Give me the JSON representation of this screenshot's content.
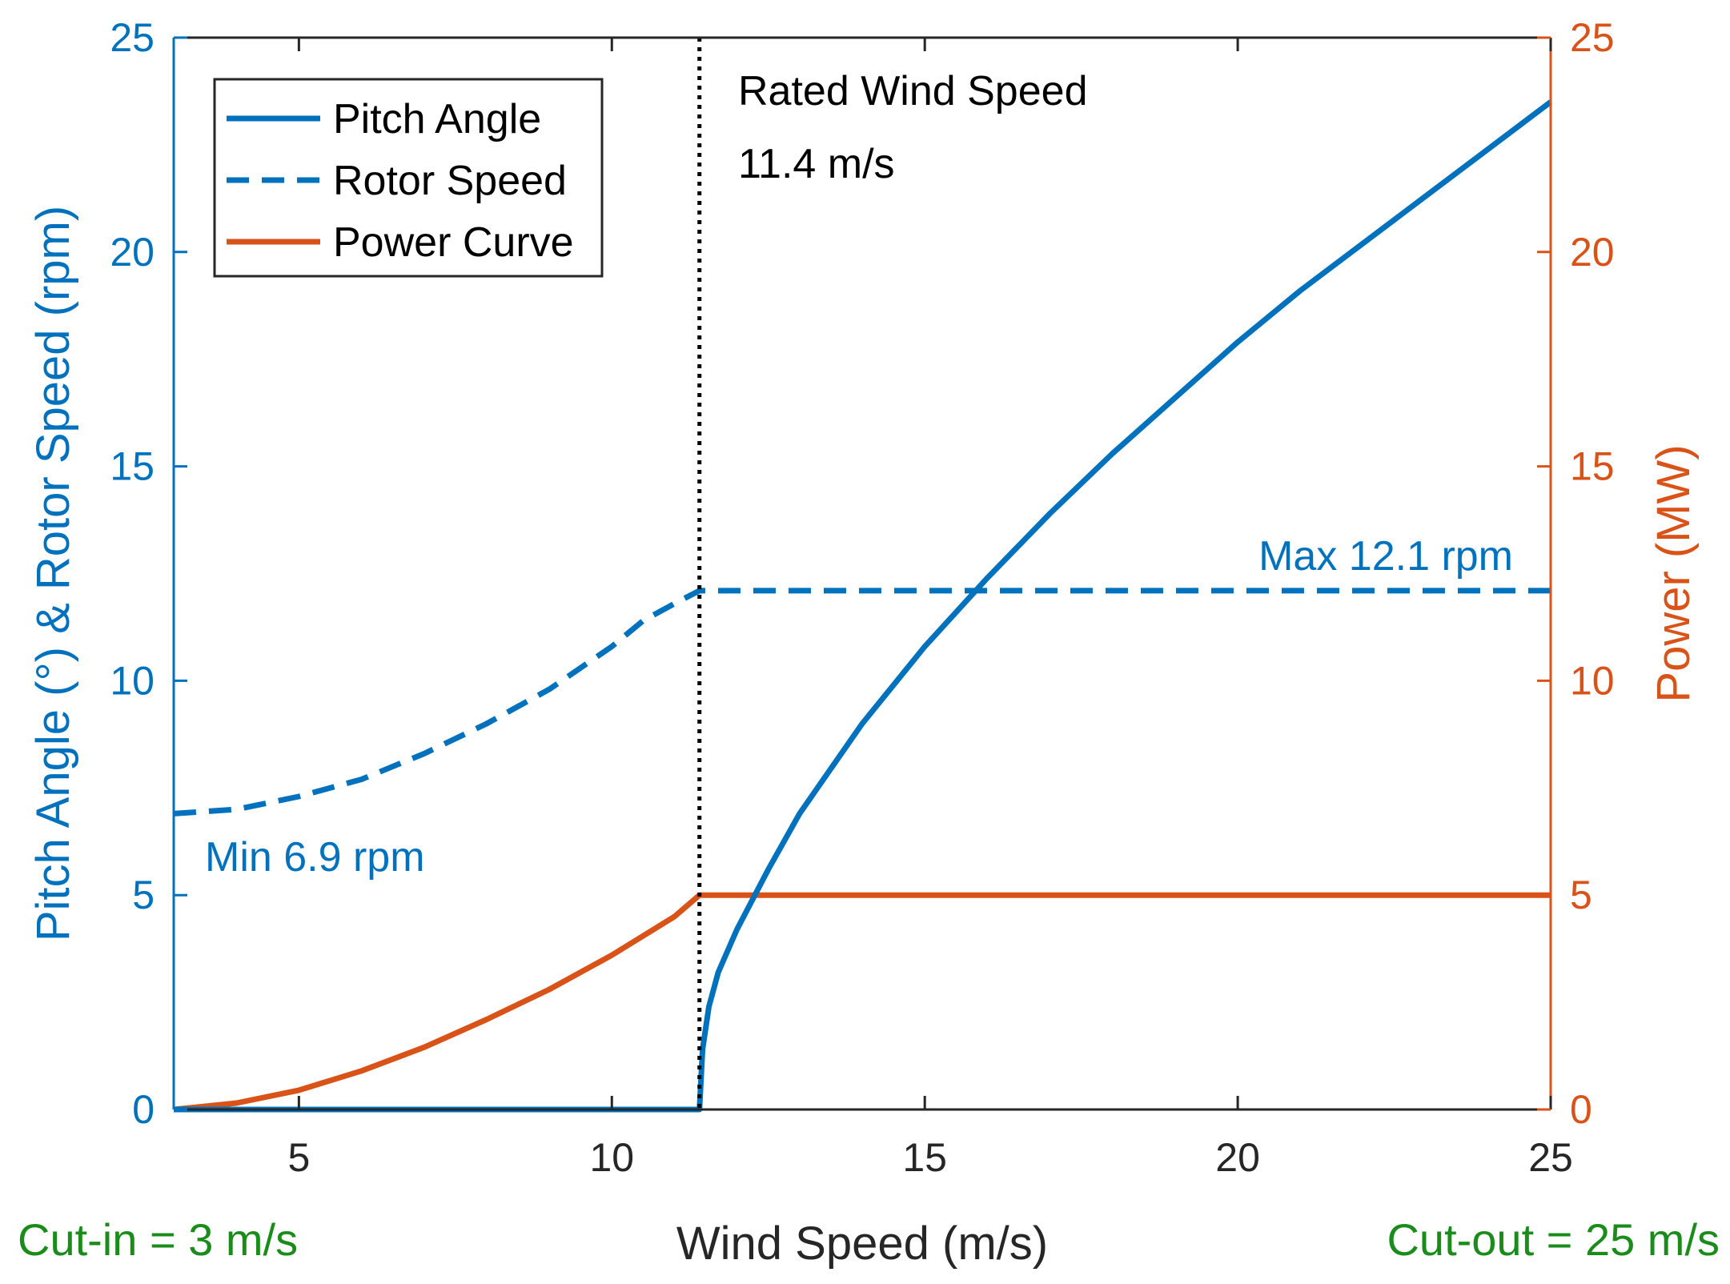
{
  "chart_data": {
    "type": "line",
    "xlabel": "Wind Speed (m/s)",
    "ylabel_left": "Pitch Angle (°) & Rotor Speed (rpm)",
    "ylabel_right": "Power (MW)",
    "xlim": [
      3,
      25
    ],
    "ylim_left": [
      0,
      25
    ],
    "ylim_right": [
      0,
      25
    ],
    "x_ticks": [
      5,
      10,
      15,
      20,
      25
    ],
    "y_ticks_left": [
      0,
      5,
      10,
      15,
      20,
      25
    ],
    "y_ticks_right": [
      0,
      5,
      10,
      15,
      20,
      25
    ],
    "legend": {
      "placement": "top-left",
      "entries": [
        "Pitch Angle",
        "Rotor Speed",
        "Power Curve"
      ]
    },
    "series": [
      {
        "name": "Pitch Angle",
        "axis": "left",
        "style": "solid",
        "color": "#0072BD",
        "x": [
          3,
          4,
          5,
          6,
          7,
          8,
          9,
          10,
          11,
          11.4,
          11.45,
          11.55,
          11.7,
          12,
          12.5,
          13,
          14,
          15,
          16,
          17,
          18,
          19,
          20,
          21,
          22,
          23,
          24,
          25
        ],
        "y": [
          0,
          0,
          0,
          0,
          0,
          0,
          0,
          0,
          0,
          0,
          1.4,
          2.4,
          3.2,
          4.2,
          5.6,
          6.9,
          9.0,
          10.8,
          12.4,
          13.9,
          15.3,
          16.6,
          17.9,
          19.1,
          20.2,
          21.3,
          22.4,
          23.5
        ]
      },
      {
        "name": "Rotor Speed",
        "axis": "left",
        "style": "dashed",
        "color": "#0072BD",
        "x": [
          3,
          4,
          5,
          6,
          7,
          8,
          9,
          10,
          10.5,
          11,
          11.4,
          12,
          15,
          20,
          25
        ],
        "y": [
          6.9,
          7.0,
          7.3,
          7.7,
          8.3,
          9.0,
          9.8,
          10.8,
          11.4,
          11.8,
          12.1,
          12.1,
          12.1,
          12.1,
          12.1
        ]
      },
      {
        "name": "Power Curve",
        "axis": "right",
        "style": "solid",
        "color": "#D95319",
        "x": [
          3,
          4,
          5,
          6,
          7,
          8,
          9,
          10,
          11,
          11.4,
          12,
          15,
          20,
          25
        ],
        "y": [
          0,
          0.15,
          0.45,
          0.9,
          1.45,
          2.1,
          2.8,
          3.6,
          4.5,
          5.0,
          5.0,
          5.0,
          5.0,
          5.0
        ]
      }
    ],
    "annotations": {
      "rated_title": "Rated Wind Speed",
      "rated_value": "11.4 m/s",
      "rated_x": 11.4,
      "max_label": "Max 12.1 rpm",
      "min_label": "Min 6.9 rpm",
      "cut_in": "Cut-in = 3 m/s",
      "cut_out": "Cut-out = 25 m/s"
    },
    "colors": {
      "left_axis": "#0072BD",
      "right_axis": "#D95319",
      "x_axis": "#262626",
      "note_green": "#1A8C1A"
    }
  }
}
